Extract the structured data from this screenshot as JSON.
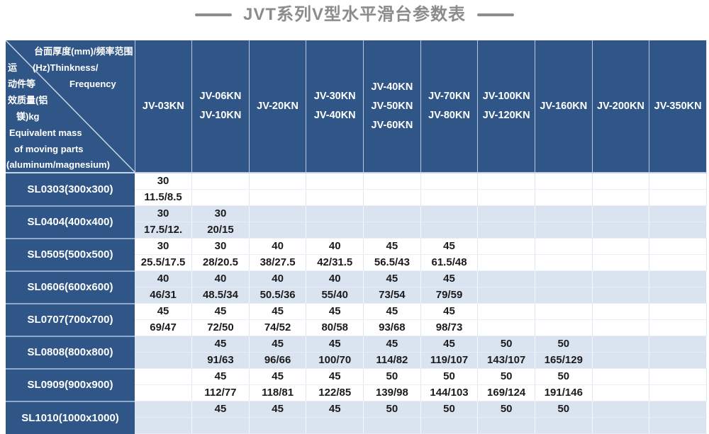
{
  "title": "JVT系列V型水平滑台参数表",
  "corner": {
    "l1": "台面厚度(mm)/频率范围",
    "l2a": "运",
    "l2b": "(Hz)Thinkness/",
    "l3a": "动件等",
    "l3b": "Frequency",
    "l4": "效质量(铝",
    "l5": "镁)kg",
    "l6": "Equivalent mass",
    "l7": "of moving parts",
    "l8": "(aluminum/magnesium)"
  },
  "colors": {
    "header_blue": "#305687",
    "alt_row_blue": "#dae4f0",
    "title_gray": "#8c8c8c",
    "data_text": "#1b1b1b"
  },
  "table": {
    "columns": [
      {
        "lines": [
          "JV-03KN"
        ]
      },
      {
        "lines": [
          "JV-06KN",
          "JV-10KN"
        ]
      },
      {
        "lines": [
          "JV-20KN"
        ]
      },
      {
        "lines": [
          "JV-30KN",
          "JV-40KN"
        ]
      },
      {
        "lines": [
          "JV-40KN",
          "JV-50KN",
          "JV-60KN"
        ]
      },
      {
        "lines": [
          "JV-70KN",
          "JV-80KN"
        ]
      },
      {
        "lines": [
          "JV-100KN",
          "JV-120KN"
        ]
      },
      {
        "lines": [
          "JV-160KN"
        ]
      },
      {
        "lines": [
          "JV-200KN"
        ]
      },
      {
        "lines": [
          "JV-350KN"
        ]
      }
    ],
    "rows": [
      {
        "label": "SL0303(300x300)",
        "cells": [
          [
            "30",
            "11.5/8.5"
          ],
          null,
          null,
          null,
          null,
          null,
          null,
          null,
          null,
          null
        ]
      },
      {
        "label": "SL0404(400x400)",
        "cells": [
          [
            "30",
            "17.5/12."
          ],
          [
            "30",
            "20/15"
          ],
          null,
          null,
          null,
          null,
          null,
          null,
          null,
          null
        ]
      },
      {
        "label": "SL0505(500x500)",
        "cells": [
          [
            "30",
            "25.5/17.5"
          ],
          [
            "30",
            "28/20.5"
          ],
          [
            "40",
            "38/27.5"
          ],
          [
            "40",
            "42/31.5"
          ],
          [
            "45",
            "56.5/43"
          ],
          [
            "45",
            "61.5/48"
          ],
          null,
          null,
          null,
          null
        ]
      },
      {
        "label": "SL0606(600x600)",
        "cells": [
          [
            "40",
            "46/31"
          ],
          [
            "40",
            "48.5/34"
          ],
          [
            "40",
            "50.5/36"
          ],
          [
            "40",
            "55/40"
          ],
          [
            "45",
            "73/54"
          ],
          [
            "45",
            "79/59"
          ],
          null,
          null,
          null,
          null
        ]
      },
      {
        "label": "SL0707(700x700)",
        "cells": [
          [
            "45",
            "69/47"
          ],
          [
            "45",
            "72/50"
          ],
          [
            "45",
            "74/52"
          ],
          [
            "45",
            "80/58"
          ],
          [
            "45",
            "93/68"
          ],
          [
            "45",
            "98/73"
          ],
          null,
          null,
          null,
          null
        ]
      },
      {
        "label": "SL0808(800x800)",
        "cells": [
          null,
          [
            "45",
            "91/63"
          ],
          [
            "45",
            "96/66"
          ],
          [
            "45",
            "100/70"
          ],
          [
            "45",
            "114/82"
          ],
          [
            "45",
            "119/107"
          ],
          [
            "50",
            "143/107"
          ],
          [
            "50",
            "165/129"
          ],
          null,
          null
        ]
      },
      {
        "label": "SL0909(900x900)",
        "cells": [
          null,
          [
            "45",
            "112/77"
          ],
          [
            "45",
            "118/81"
          ],
          [
            "45",
            "122/85"
          ],
          [
            "50",
            "139/98"
          ],
          [
            "50",
            "144/103"
          ],
          [
            "50",
            "169/124"
          ],
          [
            "50",
            "191/146"
          ],
          null,
          null
        ]
      },
      {
        "label": "SL1010(1000x1000)",
        "cells": [
          null,
          [
            "45",
            ""
          ],
          [
            "45",
            ""
          ],
          [
            "45",
            ""
          ],
          [
            "50",
            ""
          ],
          [
            "50",
            ""
          ],
          [
            "50",
            ""
          ],
          [
            "50",
            ""
          ],
          null,
          null
        ]
      }
    ]
  }
}
